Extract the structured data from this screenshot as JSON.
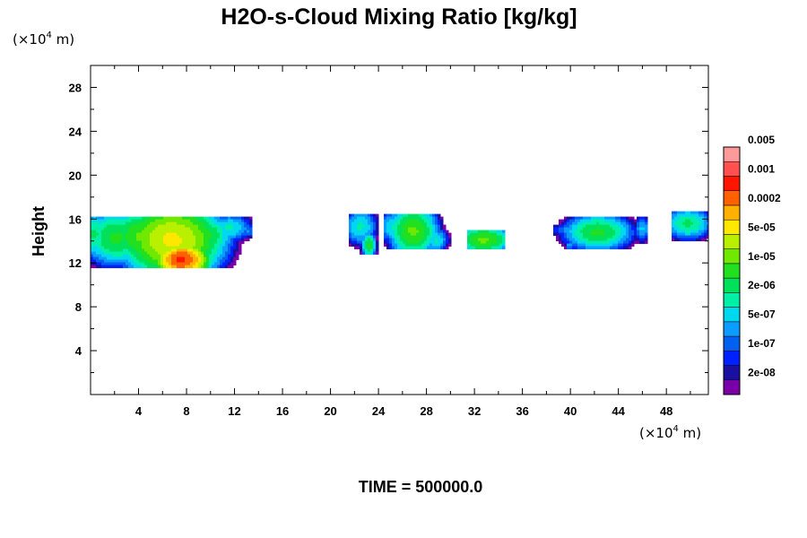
{
  "chart_data": {
    "type": "heatmap",
    "title": "H2O-s-Cloud Mixing Ratio [kg/kg]",
    "ylabel": "Height",
    "xlabel": "",
    "x_unit": {
      "prefix": "(×10",
      "exponent": "4",
      "suffix": " m)"
    },
    "y_unit": {
      "prefix": "(×10",
      "exponent": "4",
      "suffix": " m)"
    },
    "xlim": [
      0,
      51.5
    ],
    "ylim": [
      0,
      30
    ],
    "x_ticks": [
      4,
      8,
      12,
      16,
      20,
      24,
      28,
      32,
      36,
      40,
      44,
      48
    ],
    "x_tick_labels": [
      "4",
      "8",
      "12",
      "16",
      "20",
      "24",
      "28",
      "32",
      "36",
      "40",
      "44",
      "48"
    ],
    "y_ticks": [
      4,
      8,
      12,
      16,
      20,
      24,
      28
    ],
    "y_tick_labels": [
      "4",
      "8",
      "12",
      "16",
      "20",
      "24",
      "28"
    ],
    "x_minor_ticks": [
      2,
      6,
      10,
      14,
      18,
      22,
      26,
      30,
      34,
      38,
      42,
      46,
      50
    ],
    "y_minor_ticks": [
      2,
      6,
      10,
      14,
      18,
      22,
      26
    ],
    "colorbar": {
      "colors": [
        "#7a00a8",
        "#1a0fa0",
        "#0020ff",
        "#0060f0",
        "#0a9cff",
        "#00d8f0",
        "#00f0a8",
        "#00e058",
        "#20e020",
        "#70e800",
        "#b8f000",
        "#ffe800",
        "#ffb000",
        "#ff6000",
        "#ff1500",
        "#ff5050",
        "#ff9a9a"
      ],
      "labels": [
        "2e-08",
        "1e-07",
        "5e-07",
        "2e-06",
        "1e-05",
        "5e-05",
        "0.0002",
        "0.001",
        "0.005"
      ]
    },
    "cloud_regions": [
      {
        "x": [
          0,
          13.5
        ],
        "y": [
          11.5,
          16.3
        ],
        "max_level": 13
      },
      {
        "x": [
          21.5,
          24.0
        ],
        "y": [
          12.8,
          16.5
        ],
        "max_level": 8
      },
      {
        "x": [
          24.5,
          30.0
        ],
        "y": [
          13.3,
          16.4
        ],
        "max_level": 8
      },
      {
        "x": [
          31.5,
          34.5
        ],
        "y": [
          13.3,
          14.9
        ],
        "max_level": 8
      },
      {
        "x": [
          38.5,
          46.5
        ],
        "y": [
          13.3,
          16.2
        ],
        "max_level": 7
      },
      {
        "x": [
          48.5,
          51.5
        ],
        "y": [
          14.0,
          16.6
        ],
        "max_level": 7
      }
    ],
    "cloud_blobs": [
      {
        "x": 0.3,
        "y": 14.6,
        "rx": 0.9,
        "ry": 1.5,
        "level": 6
      },
      {
        "x": 2.2,
        "y": 14.3,
        "rx": 1.9,
        "ry": 1.7,
        "level": 7
      },
      {
        "x": 4.4,
        "y": 14.4,
        "rx": 2.0,
        "ry": 1.7,
        "level": 8
      },
      {
        "x": 6.8,
        "y": 14.1,
        "rx": 2.6,
        "ry": 2.1,
        "level": 10
      },
      {
        "x": 7.6,
        "y": 12.3,
        "rx": 1.3,
        "ry": 0.9,
        "level": 13
      },
      {
        "x": 9.6,
        "y": 14.5,
        "rx": 1.5,
        "ry": 1.3,
        "level": 7
      },
      {
        "x": 11.6,
        "y": 15.2,
        "rx": 1.3,
        "ry": 0.9,
        "level": 5
      },
      {
        "x": 13.2,
        "y": 14.9,
        "rx": 0.3,
        "ry": 0.5,
        "level": 3
      },
      {
        "x": 22.5,
        "y": 15.3,
        "rx": 1.0,
        "ry": 1.2,
        "level": 5
      },
      {
        "x": 23.2,
        "y": 13.6,
        "rx": 0.4,
        "ry": 0.8,
        "level": 7
      },
      {
        "x": 25.4,
        "y": 15.3,
        "rx": 1.0,
        "ry": 1.1,
        "level": 5
      },
      {
        "x": 26.9,
        "y": 14.9,
        "rx": 1.3,
        "ry": 1.5,
        "level": 8
      },
      {
        "x": 28.8,
        "y": 14.1,
        "rx": 0.7,
        "ry": 0.8,
        "level": 5
      },
      {
        "x": 32.8,
        "y": 14.1,
        "rx": 1.5,
        "ry": 0.8,
        "level": 8
      },
      {
        "x": 39.7,
        "y": 15.0,
        "rx": 1.1,
        "ry": 0.5,
        "level": 3
      },
      {
        "x": 42.3,
        "y": 14.8,
        "rx": 1.9,
        "ry": 1.1,
        "level": 7
      },
      {
        "x": 46.0,
        "y": 15.1,
        "rx": 0.5,
        "ry": 0.9,
        "level": 4
      },
      {
        "x": 49.8,
        "y": 15.6,
        "rx": 1.4,
        "ry": 1.0,
        "level": 6
      },
      {
        "x": 23.0,
        "y": 12.8,
        "rx": 0.3,
        "ry": 0.3,
        "level": 4
      },
      {
        "x": 39.9,
        "y": 13.6,
        "rx": 0.25,
        "ry": 0.25,
        "level": 4
      },
      {
        "x": 48.6,
        "y": 13.2,
        "rx": 0.2,
        "ry": 0.25,
        "level": 4
      }
    ]
  },
  "footer": {
    "time_text": "TIME = 500000.0"
  }
}
